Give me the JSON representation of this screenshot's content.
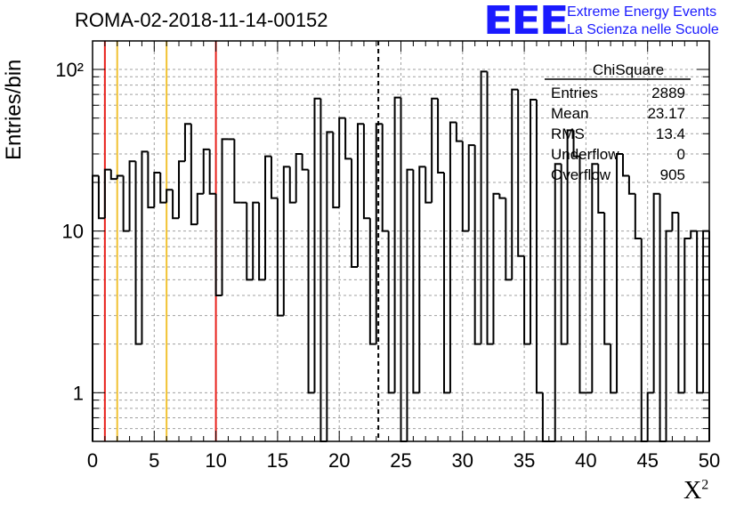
{
  "header": {
    "title": "ROMA-02-2018-11-14-00152"
  },
  "logo": {
    "mark": "EEE",
    "line1": "Extreme Energy Events",
    "line2": "La Scienza nelle Scuole",
    "color": "#1a1aff"
  },
  "axes": {
    "ylabel": "Entries/bin",
    "xlabel_base": "X",
    "xlabel_sup": "2"
  },
  "stats": {
    "title": "ChiSquare",
    "rows": [
      {
        "label": "Entries",
        "value": "2889"
      },
      {
        "label": "Mean",
        "value": "23.17"
      },
      {
        "label": "RMS",
        "value": "13.4"
      },
      {
        "label": "Underflow",
        "value": "0"
      },
      {
        "label": "Overflow",
        "value": "905"
      }
    ]
  },
  "chart_data": {
    "type": "bar",
    "style": "step-histogram",
    "title": "ROMA-02-2018-11-14-00152",
    "xlabel": "X^2",
    "ylabel": "Entries/bin",
    "xlim": [
      0,
      50
    ],
    "ylim": [
      0.5,
      150
    ],
    "yscale": "log",
    "bin_width": 0.5,
    "x_ticks": [
      0,
      5,
      10,
      15,
      20,
      25,
      30,
      35,
      40,
      45,
      50
    ],
    "x_tick_labels": [
      "0",
      "5",
      "10",
      "15",
      "20",
      "25",
      "30",
      "35",
      "40",
      "45",
      "50"
    ],
    "y_ticks": [
      1,
      10,
      100
    ],
    "y_tick_labels": [
      "1",
      "10",
      "10²"
    ],
    "grid": true,
    "values": [
      22,
      12,
      24,
      21,
      22,
      10,
      27,
      2,
      31,
      14,
      23,
      15,
      18,
      12,
      27,
      46,
      11,
      17,
      32,
      17,
      4,
      37,
      37,
      15,
      15,
      5,
      15,
      5,
      29,
      16,
      3,
      25,
      15,
      30,
      24,
      1,
      66,
      0.4,
      41,
      14,
      50,
      28,
      6,
      46,
      12,
      2,
      46,
      10,
      1,
      67,
      0.4,
      24,
      1,
      25,
      15,
      66,
      23,
      1,
      47,
      36,
      10,
      34,
      2,
      97,
      2,
      17,
      16,
      5,
      75,
      7,
      2,
      65,
      1,
      0.4,
      0.4,
      26,
      2,
      42,
      29,
      1,
      1,
      26,
      13,
      2,
      1,
      30,
      22,
      17,
      9,
      0.4,
      1,
      17,
      0.4,
      10,
      13,
      1,
      9,
      10,
      1,
      10
    ],
    "vertical_lines": [
      {
        "x": 1,
        "color": "#e8211c",
        "style": "solid"
      },
      {
        "x": 2,
        "color": "#f1c232",
        "style": "solid"
      },
      {
        "x": 6,
        "color": "#f1c232",
        "style": "solid"
      },
      {
        "x": 10,
        "color": "#e8211c",
        "style": "solid"
      },
      {
        "x": 23.17,
        "color": "#000000",
        "style": "dashed"
      }
    ]
  }
}
